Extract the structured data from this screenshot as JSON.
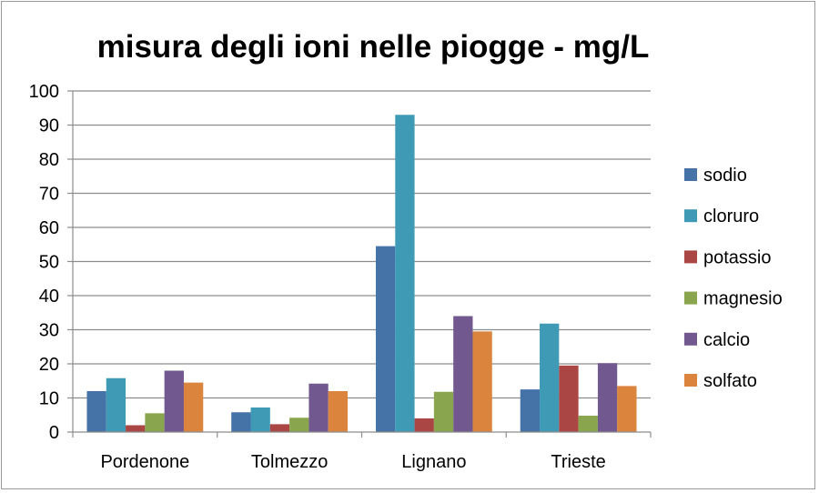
{
  "chart_data": {
    "type": "bar",
    "title": "misura degli ioni nelle piogge - mg/L",
    "xlabel": "",
    "ylabel": "",
    "ylim": [
      0,
      100
    ],
    "yticks": [
      0,
      10,
      20,
      30,
      40,
      50,
      60,
      70,
      80,
      90,
      100
    ],
    "grid": true,
    "legend_position": "right",
    "categories": [
      "Pordenone",
      "Tolmezzo",
      "Lignano",
      "Trieste"
    ],
    "series": [
      {
        "name": "sodio",
        "color": "#4573a7",
        "values": [
          12,
          5.8,
          54.5,
          12.5
        ]
      },
      {
        "name": "cloruro",
        "color": "#3f9bb5",
        "values": [
          15.8,
          7.2,
          93,
          31.8
        ]
      },
      {
        "name": "potassio",
        "color": "#aa4643",
        "values": [
          2,
          2.3,
          4,
          19.5
        ]
      },
      {
        "name": "magnesio",
        "color": "#89a54e",
        "values": [
          5.5,
          4.2,
          11.8,
          4.8
        ]
      },
      {
        "name": "calcio",
        "color": "#71588f",
        "values": [
          18,
          14.2,
          34,
          20.2
        ]
      },
      {
        "name": "solfato",
        "color": "#db843d",
        "values": [
          14.5,
          12,
          29.5,
          13.5
        ]
      }
    ]
  }
}
